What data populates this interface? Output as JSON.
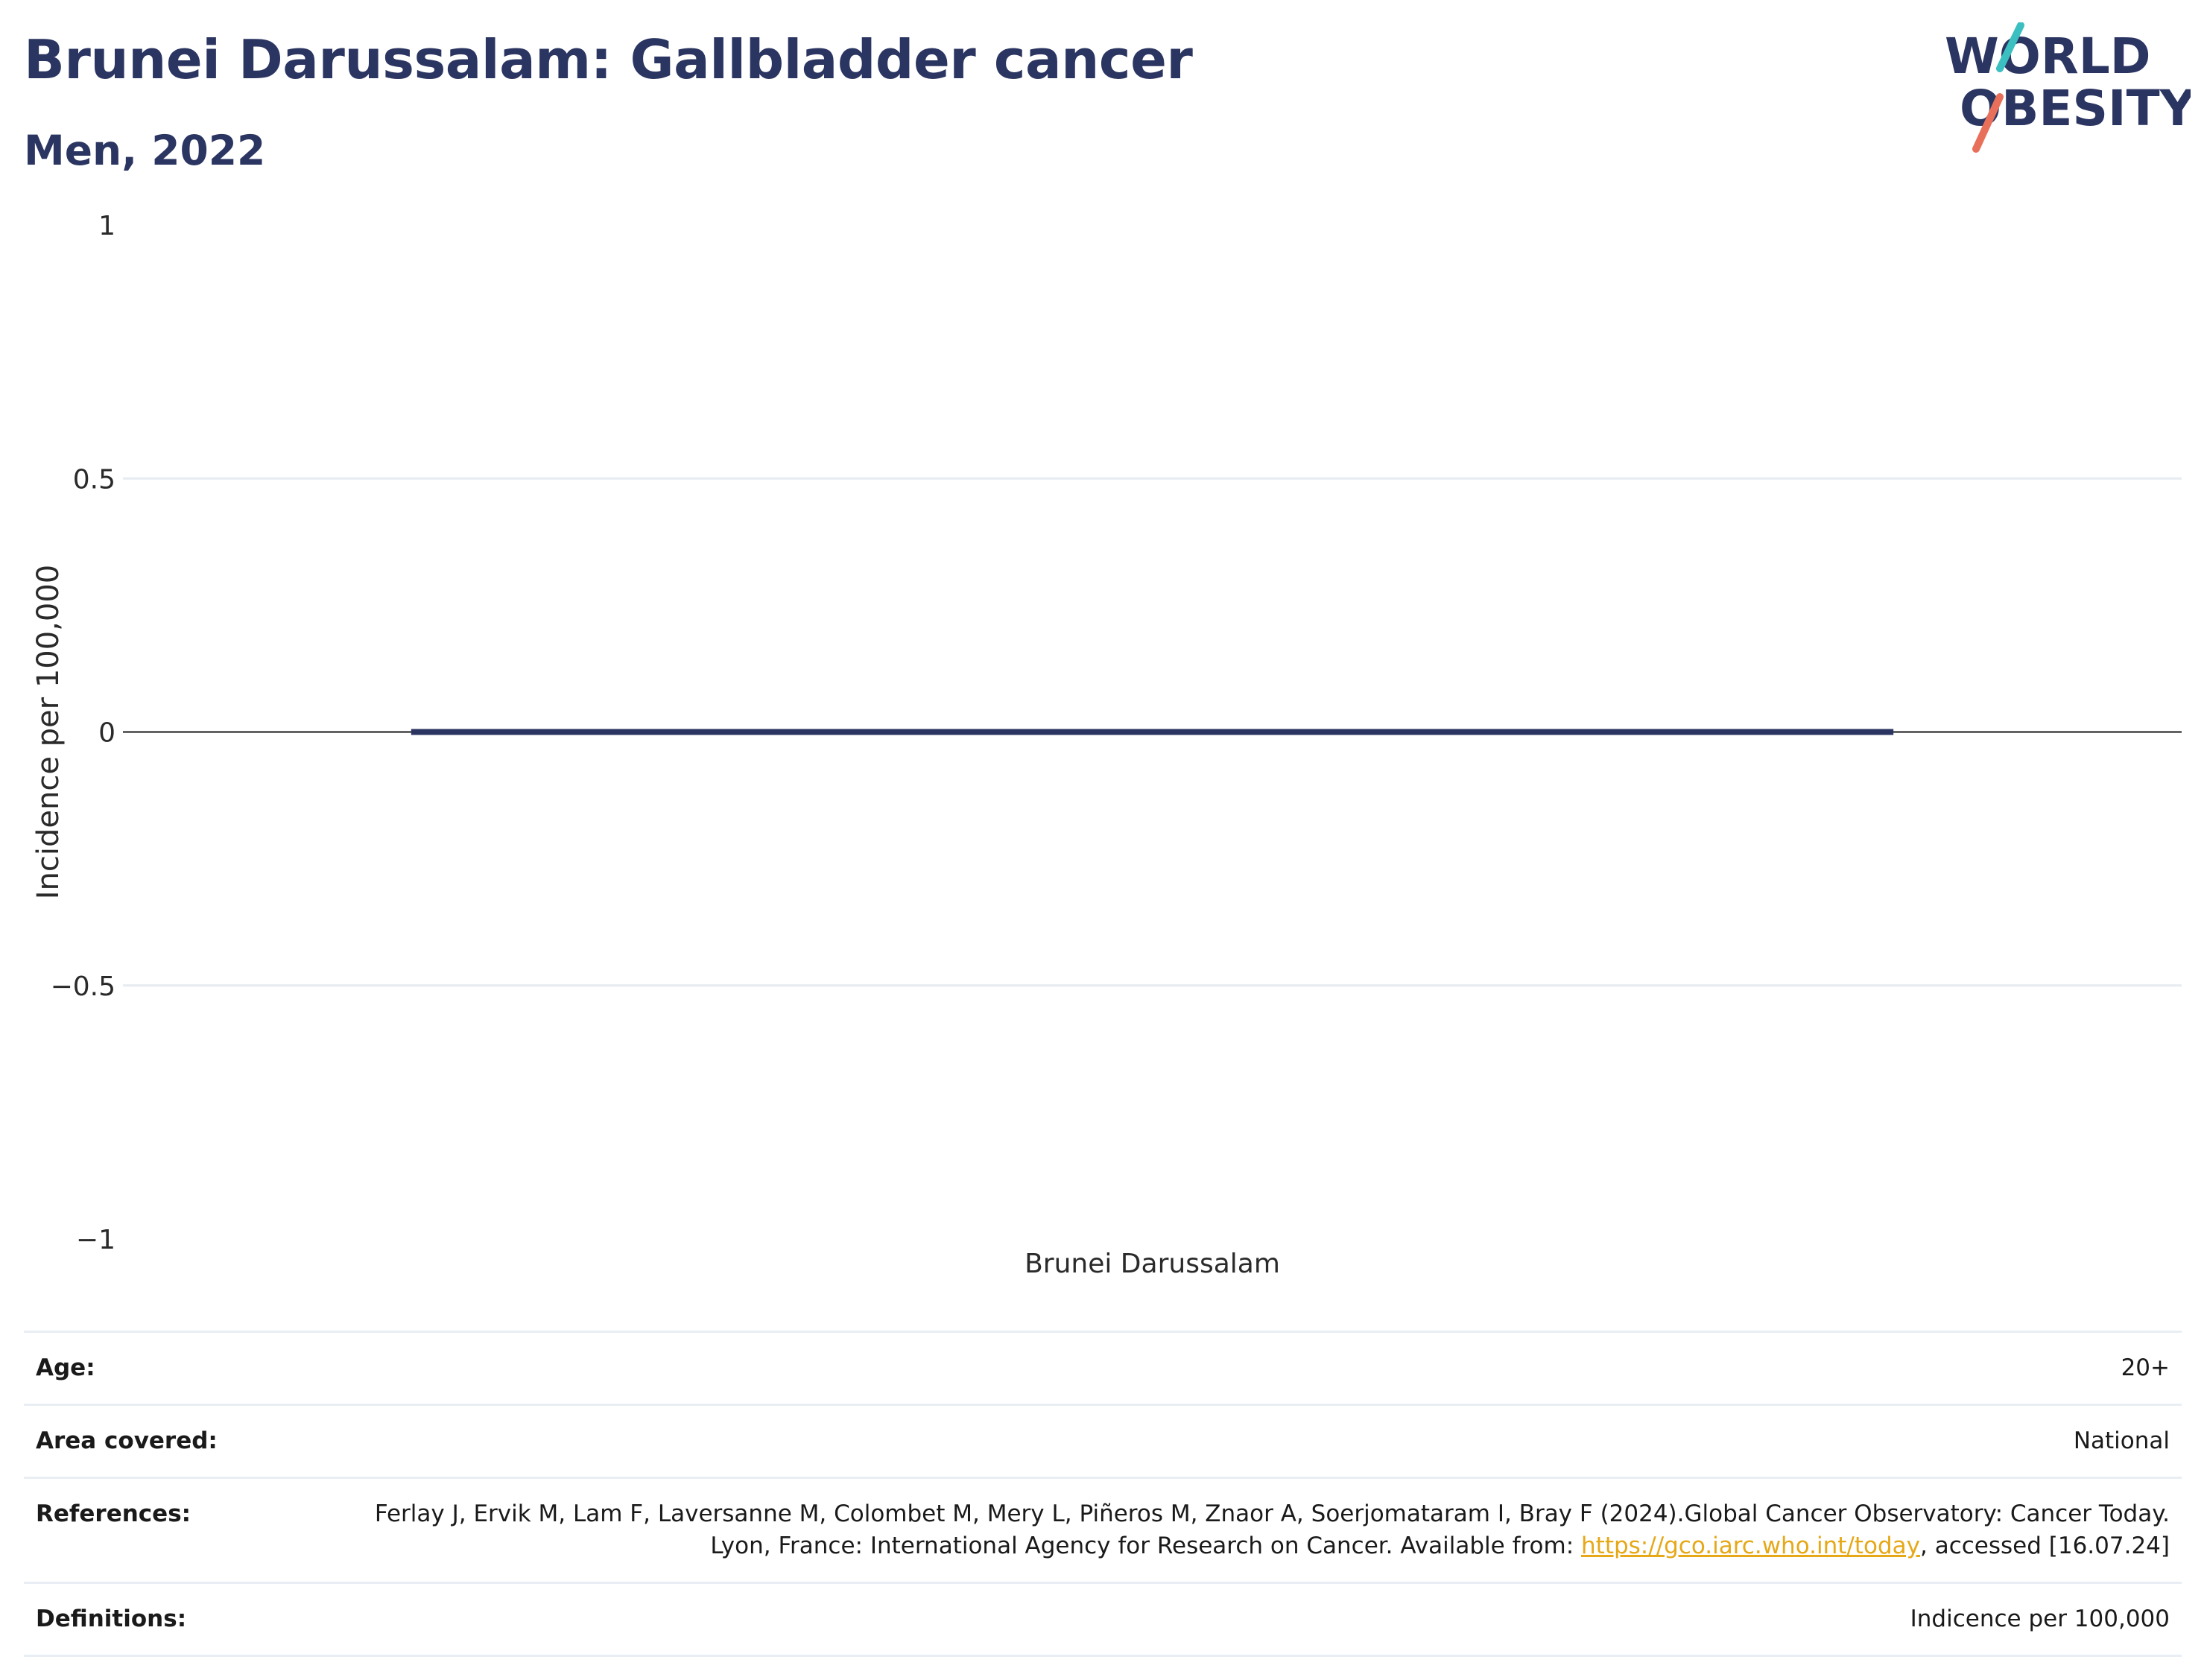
{
  "header": {
    "title": "Brunei Darussalam: Gallbladder cancer",
    "subtitle": "Men, 2022"
  },
  "logo": {
    "line1": "WORLD",
    "line2": "OBESITY",
    "text_color": "#2b3561",
    "slash_top_color": "#3bbfc0",
    "slash_bottom_color": "#e8705a"
  },
  "chart_data": {
    "type": "bar",
    "categories": [
      "Brunei Darussalam"
    ],
    "values": [
      0
    ],
    "ylabel": "Incidence per 100,000",
    "xlabel": "",
    "ylim": [
      -1,
      1
    ],
    "yticks": [
      1,
      0.5,
      0,
      -0.5,
      -1
    ],
    "ytick_labels": [
      "1",
      "0.5",
      "0",
      "−0.5",
      "−1"
    ],
    "bar_color": "#2b3561",
    "grid": true
  },
  "info": {
    "age": {
      "label": "Age:",
      "value": "20+"
    },
    "area": {
      "label": "Area covered:",
      "value": "National"
    },
    "references": {
      "label": "References:",
      "text_before": "Ferlay J, Ervik M, Lam F, Laversanne M, Colombet M, Mery L, Piñeros M, Znaor A, Soerjomataram I, Bray F (2024).Global Cancer Observatory: Cancer Today. Lyon, France: International Agency for Research on Cancer. Available from: ",
      "link_text": "https://gco.iarc.who.int/today",
      "text_after": ", accessed [16.07.24]"
    },
    "definitions": {
      "label": "Definitions:",
      "value": "Indicence per 100,000"
    }
  }
}
